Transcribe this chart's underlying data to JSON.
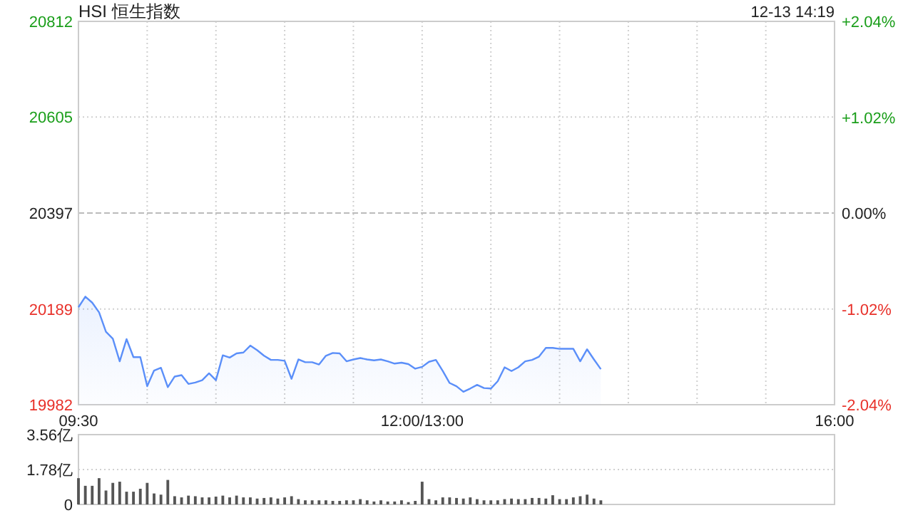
{
  "chart_data": [
    {
      "type": "area",
      "title": "HSI 恒生指数",
      "annotations": [
        "12-13 14:19"
      ],
      "color": "#5b8ff9",
      "grid": true,
      "categories": [
        "09:30",
        null,
        null,
        null,
        null,
        null,
        null,
        null,
        null,
        null,
        null,
        null,
        null,
        null,
        null,
        null,
        null,
        null,
        null,
        null,
        null,
        null,
        null,
        null,
        null,
        null,
        null,
        null,
        null,
        null,
        null,
        null,
        null,
        null,
        null,
        null,
        null,
        null,
        null,
        null,
        null,
        null,
        null,
        null,
        null,
        null,
        null,
        null,
        null,
        null,
        "12:00/13:00",
        null,
        null,
        null,
        null,
        null,
        null,
        null,
        null,
        null,
        null,
        null,
        null,
        null,
        null,
        null,
        null,
        null,
        null,
        null,
        null,
        null,
        null,
        null,
        null,
        null,
        null,
        null,
        null,
        null,
        null,
        null,
        null,
        null,
        null,
        null,
        null,
        null,
        null,
        null,
        null,
        null,
        null,
        null,
        null,
        null,
        null,
        null,
        null,
        null,
        null,
        null,
        null,
        null,
        null,
        null,
        null,
        null,
        null,
        null,
        "16:00"
      ],
      "values": [
        20193,
        20216,
        20203,
        20182,
        20140,
        20125,
        20076,
        20124,
        20085,
        20085,
        20022,
        20056,
        20062,
        20020,
        20043,
        20046,
        20027,
        20030,
        20035,
        20050,
        20035,
        20089,
        20084,
        20093,
        20095,
        20110,
        20100,
        20088,
        20079,
        20079,
        20077,
        20038,
        20080,
        20074,
        20074,
        20069,
        20088,
        20094,
        20093,
        20076,
        20080,
        20083,
        20080,
        20078,
        20080,
        20076,
        20071,
        20073,
        20070,
        20060,
        20064,
        20075,
        20079,
        20055,
        20029,
        20022,
        20010,
        20017,
        20025,
        20018,
        20017,
        20033,
        20063,
        20055,
        20063,
        20076,
        20079,
        20086,
        20105,
        20105,
        20103,
        20103,
        20103,
        20076,
        20102,
        20080,
        20059,
        null,
        null,
        null,
        null,
        null,
        null,
        null,
        null,
        null,
        null,
        null,
        null,
        null,
        null,
        null,
        null,
        null,
        null,
        null,
        null,
        null,
        null,
        null,
        null,
        null,
        null,
        null,
        null,
        null,
        null,
        null,
        null,
        null,
        null
      ],
      "ylim": [
        19982,
        20812
      ],
      "yticks": [
        19982,
        20189,
        20397,
        20605,
        20812
      ],
      "ref_lines": [
        {
          "axis": "y",
          "value": 20397,
          "line_style": "dashed"
        }
      ],
      "y2lim": [
        -2.04,
        2.04
      ],
      "y2ticks": [
        {
          "value": -2.04,
          "label": "-2.04%"
        },
        {
          "value": -1.02,
          "label": "-1.02%"
        },
        {
          "value": 0,
          "label": "0.00%"
        },
        {
          "value": 1.02,
          "label": "+1.02%"
        },
        {
          "value": 2.04,
          "label": "+2.04%"
        }
      ]
    },
    {
      "type": "bar",
      "color": "#555555",
      "grid": "y",
      "categories": [
        null,
        null,
        null,
        null,
        null,
        null,
        null,
        null,
        null,
        null,
        null,
        null,
        null,
        null,
        null,
        null,
        null,
        null,
        null,
        null,
        null,
        null,
        null,
        null,
        null,
        null,
        null,
        null,
        null,
        null,
        null,
        null,
        null,
        null,
        null,
        null,
        null,
        null,
        null,
        null,
        null,
        null,
        null,
        null,
        null,
        null,
        null,
        null,
        null,
        null,
        null,
        null,
        null,
        null,
        null,
        null,
        null,
        null,
        null,
        null,
        null,
        null,
        null,
        null,
        null,
        null,
        null,
        null,
        null,
        null,
        null,
        null,
        null,
        null,
        null,
        null,
        null,
        null,
        null,
        null,
        null,
        null,
        null,
        null,
        null,
        null,
        null,
        null,
        null,
        null,
        null,
        null,
        null,
        null,
        null,
        null,
        null,
        null,
        null,
        null,
        null,
        null,
        null,
        null,
        null,
        null,
        null,
        null,
        null,
        null,
        null
      ],
      "values": [
        1.34,
        0.95,
        0.95,
        1.34,
        0.71,
        1.1,
        1.16,
        0.65,
        0.65,
        0.8,
        1.1,
        0.56,
        0.5,
        1.25,
        0.42,
        0.36,
        0.45,
        0.42,
        0.36,
        0.36,
        0.4,
        0.45,
        0.36,
        0.45,
        0.36,
        0.36,
        0.3,
        0.33,
        0.36,
        0.3,
        0.36,
        0.42,
        0.27,
        0.21,
        0.21,
        0.21,
        0.21,
        0.18,
        0.18,
        0.21,
        0.21,
        0.27,
        0.21,
        0.15,
        0.21,
        0.15,
        0.15,
        0.21,
        0.12,
        0.18,
        1.16,
        0.27,
        0.21,
        0.36,
        0.36,
        0.33,
        0.3,
        0.36,
        0.27,
        0.21,
        0.21,
        0.21,
        0.27,
        0.3,
        0.27,
        0.27,
        0.33,
        0.33,
        0.3,
        0.47,
        0.27,
        0.27,
        0.36,
        0.42,
        0.5,
        0.3,
        0.21,
        null,
        null,
        null,
        null,
        null,
        null,
        null,
        null,
        null,
        null,
        null,
        null,
        null,
        null,
        null,
        null,
        null,
        null,
        null,
        null,
        null,
        null,
        null,
        null,
        null,
        null,
        null,
        null,
        null,
        null,
        null,
        null,
        null,
        null
      ],
      "ylim": [
        0,
        3.56
      ],
      "yticks": [
        0,
        {
          "value": 1.78,
          "label": "1.78亿"
        },
        {
          "value": 3.56,
          "label": "3.56亿"
        }
      ]
    }
  ]
}
